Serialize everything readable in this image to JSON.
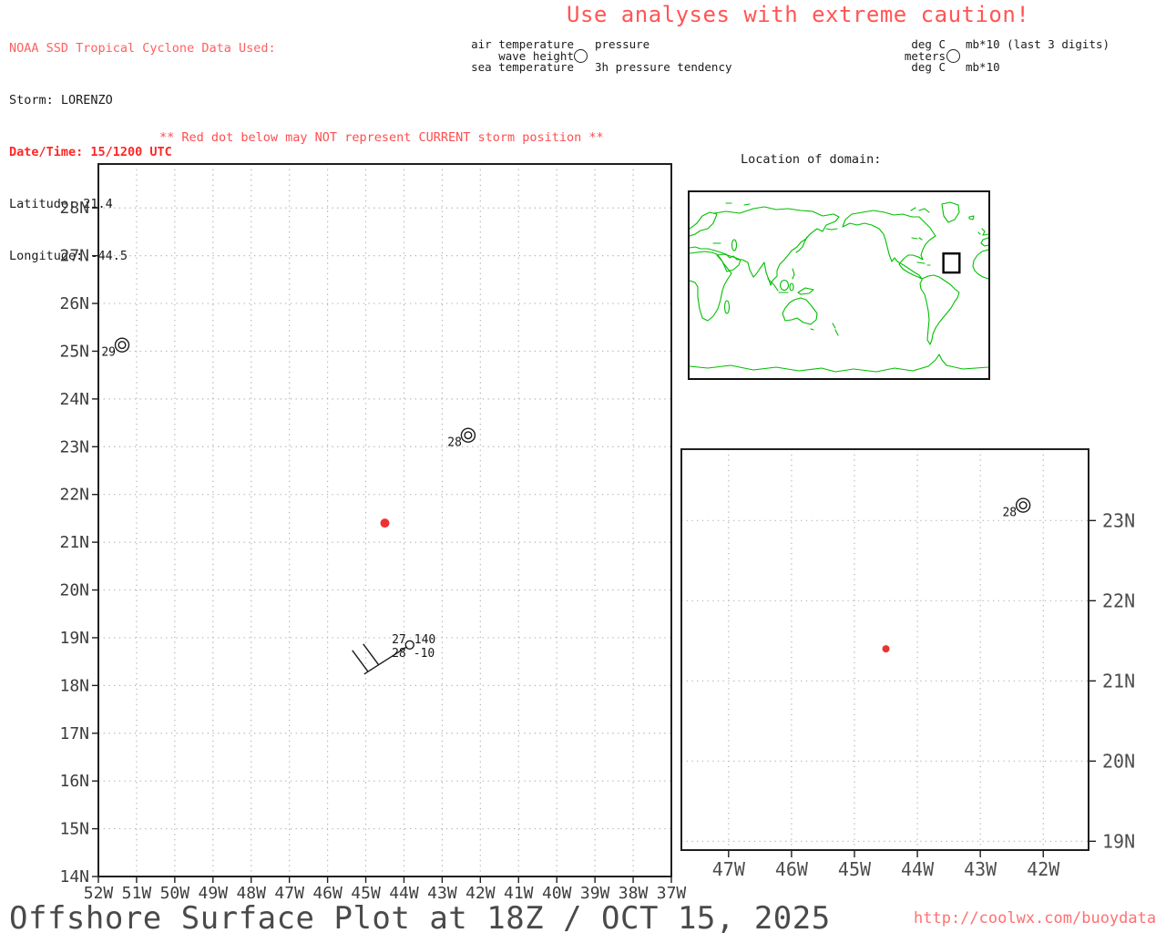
{
  "header": {
    "source": "NOAA SSD Tropical Cyclone Data Used:",
    "storm": "Storm: LORENZO",
    "datetime": "Date/Time: 15/1200 UTC",
    "latitude": "Latitude: 21.4",
    "longitude": "Longitude: -44.5"
  },
  "caution": "Use analyses with extreme caution!",
  "station_legend": {
    "air_temperature": "air temperature",
    "wave_height": "wave height",
    "sea_temperature": "sea temperature",
    "pressure": "pressure",
    "pressure_tendency": "3h pressure tendency"
  },
  "units_legend": {
    "air_temperature_units": "deg C",
    "wave_height_units": "meters",
    "sea_temperature_units": "deg C",
    "pressure_units": "mb*10 (last 3 digits)",
    "pressure_tendency_units": "mb*10"
  },
  "warning": "** Red dot below may NOT represent CURRENT storm position **",
  "domain_map": {
    "title": "Location of domain:"
  },
  "footer": {
    "title": "Offshore Surface Plot at 18Z / OCT 15, 2025",
    "url": "http://coolwx.com/buoydata"
  },
  "colors": {
    "alert_red": "#ff5555",
    "storm_dot_red": "#ee3131",
    "coastline_green": "#00bf00",
    "grid_gray": "#b3b3b3",
    "axis_text_gray": "#3d3d3d"
  },
  "chart_data": [
    {
      "name": "main_offshore_surface_plot",
      "type": "scatter",
      "title": "",
      "xlabel": "",
      "ylabel": "",
      "xlim": [
        -52,
        -37
      ],
      "ylim": [
        14,
        28.92
      ],
      "grid": {
        "on": true,
        "style": "dotted",
        "interval_deg": 1
      },
      "legend_position": "none",
      "x_ticks": {
        "values": [
          -52,
          -51,
          -50,
          -49,
          -48,
          -47,
          -46,
          -45,
          -44,
          -43,
          -42,
          -41,
          -40,
          -39,
          -38,
          -37
        ],
        "labels": [
          "52W",
          "51W",
          "50W",
          "49W",
          "48W",
          "47W",
          "46W",
          "45W",
          "44W",
          "43W",
          "42W",
          "41W",
          "40W",
          "39W",
          "38W",
          "37W"
        ]
      },
      "y_ticks": {
        "values": [
          14,
          15,
          16,
          17,
          18,
          19,
          20,
          21,
          22,
          23,
          24,
          25,
          26,
          27,
          28
        ],
        "labels": [
          "14N",
          "15N",
          "16N",
          "17N",
          "18N",
          "19N",
          "20N",
          "21N",
          "22N",
          "23N",
          "24N",
          "25N",
          "26N",
          "27N",
          "28N"
        ]
      },
      "storm_position": {
        "lat": 21.4,
        "lon": -44.5,
        "marker": "red-dot"
      },
      "stations": [
        {
          "kind": "ship",
          "lon": -51.38,
          "lat": 25.13,
          "sea_temperature": "29",
          "marker": "double-circle"
        },
        {
          "kind": "ship",
          "lon": -42.32,
          "lat": 23.24,
          "sea_temperature": "28",
          "marker": "double-circle"
        },
        {
          "kind": "buoy",
          "lon": -43.85,
          "lat": 18.85,
          "air_temperature": "27",
          "pressure": "140",
          "sea_temperature": "28",
          "pressure_tendency": "-10",
          "wind_barb": {
            "speed_knots": 20,
            "from_direction": "southwest"
          }
        }
      ]
    },
    {
      "name": "zoom_offshore_surface_plot",
      "type": "scatter",
      "title": "",
      "xlabel": "",
      "ylabel": "",
      "xlim": [
        -47.75,
        -41.28
      ],
      "ylim": [
        18.89,
        23.89
      ],
      "grid": {
        "on": true,
        "style": "dotted",
        "interval_deg": 1
      },
      "legend_position": "none",
      "x_ticks": {
        "values": [
          -47,
          -46,
          -45,
          -44,
          -43,
          -42
        ],
        "labels": [
          "47W",
          "46W",
          "45W",
          "44W",
          "43W",
          "42W"
        ]
      },
      "y_ticks": {
        "values": [
          19,
          20,
          21,
          22,
          23
        ],
        "labels": [
          "19N",
          "20N",
          "21N",
          "22N",
          "23N"
        ]
      },
      "storm_position": {
        "lat": 21.4,
        "lon": -44.5,
        "marker": "red-dot"
      },
      "stations": [
        {
          "kind": "ship",
          "lon": -42.32,
          "lat": 23.19,
          "sea_temperature": "28",
          "marker": "double-circle"
        }
      ]
    }
  ]
}
